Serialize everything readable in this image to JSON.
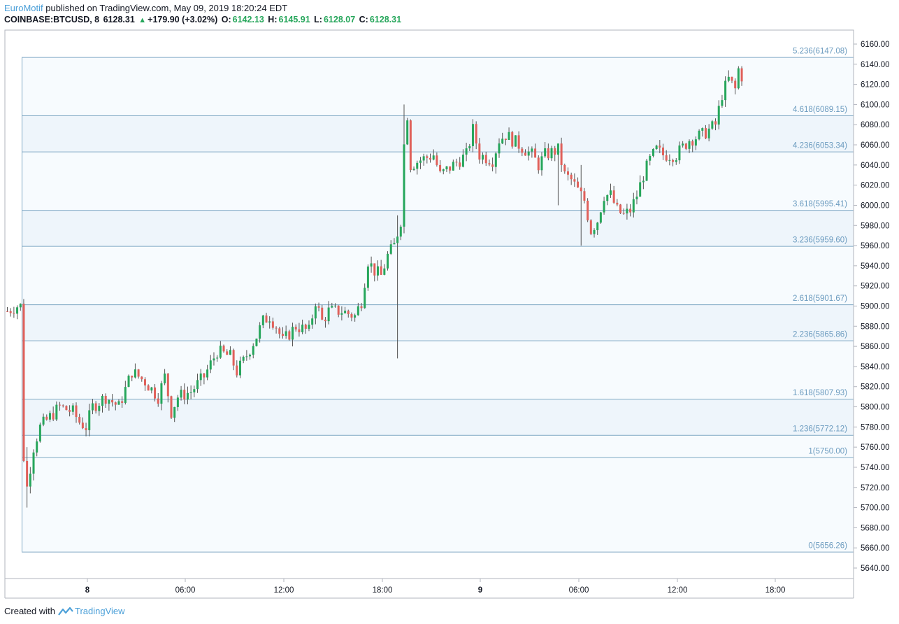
{
  "header": {
    "author": "EuroMotif",
    "published_text": "published on TradingView.com, May 09, 2019 18:20:24 EDT",
    "symbol": "COINBASE:BTCUSD, 8",
    "last": "6128.31",
    "change": "+179.90 (+3.02%)",
    "o_label": "O:",
    "o_value": "6142.13",
    "h_label": "H:",
    "h_value": "6145.91",
    "l_label": "L:",
    "l_value": "6128.07",
    "c_label": "C:",
    "c_value": "6128.31"
  },
  "footer": {
    "created_with": "Created with",
    "brand": "TradingView"
  },
  "colors": {
    "up": "#26a65b",
    "down": "#e0605a",
    "fib_line": "#7fa8c4",
    "fib_label": "#6b9bbf",
    "band": "#eef5fb"
  },
  "chart_data": {
    "type": "candlestick",
    "ylim": [
      5630,
      6170
    ],
    "y_ticks": [
      5640,
      5660,
      5680,
      5700,
      5720,
      5740,
      5760,
      5780,
      5800,
      5820,
      5840,
      5860,
      5880,
      5900,
      5920,
      5940,
      5960,
      5980,
      6000,
      6020,
      6040,
      6060,
      6080,
      6100,
      6120,
      6140,
      6160
    ],
    "y_tick_labels": [
      "5640.00",
      "5660.00",
      "5680.00",
      "5700.00",
      "5720.00",
      "5740.00",
      "5760.00",
      "5780.00",
      "5800.00",
      "5820.00",
      "5840.00",
      "5860.00",
      "5880.00",
      "5900.00",
      "5920.00",
      "5940.00",
      "5960.00",
      "5980.00",
      "6000.00",
      "6020.00",
      "6040.00",
      "6060.00",
      "6080.00",
      "6100.00",
      "6120.00",
      "6140.00",
      "6160.00"
    ],
    "x_tick_labels": [
      "8",
      "06:00",
      "12:00",
      "18:00",
      "9",
      "06:00",
      "12:00",
      "18:00"
    ],
    "fib_levels": [
      {
        "ratio": "0",
        "price": 5656.26,
        "label": "0(5656.26)"
      },
      {
        "ratio": "1",
        "price": 5750.0,
        "label": "1(5750.00)"
      },
      {
        "ratio": "1.236",
        "price": 5772.12,
        "label": "1.236(5772.12)"
      },
      {
        "ratio": "1.618",
        "price": 5807.93,
        "label": "1.618(5807.93)"
      },
      {
        "ratio": "2.236",
        "price": 5865.86,
        "label": "2.236(5865.86)"
      },
      {
        "ratio": "2.618",
        "price": 5901.67,
        "label": "2.618(5901.67)"
      },
      {
        "ratio": "3.236",
        "price": 5959.6,
        "label": "3.236(5959.60)"
      },
      {
        "ratio": "3.618",
        "price": 5995.41,
        "label": "3.618(5995.41)"
      },
      {
        "ratio": "4.236",
        "price": 6053.34,
        "label": "4.236(6053.34)"
      },
      {
        "ratio": "4.618",
        "price": 6089.15,
        "label": "4.618(6089.15)"
      },
      {
        "ratio": "5.236",
        "price": 6147.08,
        "label": "5.236(6147.08)"
      }
    ],
    "bands": [
      [
        5772.12,
        5807.93
      ],
      [
        5865.86,
        5901.67
      ],
      [
        5959.6,
        5995.41
      ],
      [
        6053.34,
        6089.15
      ]
    ],
    "price_path": [
      [
        0,
        5895
      ],
      [
        3,
        5900
      ],
      [
        4,
        5900
      ],
      [
        5,
        5750
      ],
      [
        6,
        5720
      ],
      [
        8,
        5760
      ],
      [
        10,
        5780
      ],
      [
        16,
        5800
      ],
      [
        20,
        5795
      ],
      [
        22,
        5785
      ],
      [
        24,
        5780
      ],
      [
        26,
        5800
      ],
      [
        30,
        5810
      ],
      [
        34,
        5800
      ],
      [
        38,
        5835
      ],
      [
        42,
        5825
      ],
      [
        46,
        5810
      ],
      [
        48,
        5830
      ],
      [
        50,
        5795
      ],
      [
        52,
        5810
      ],
      [
        56,
        5815
      ],
      [
        60,
        5830
      ],
      [
        64,
        5855
      ],
      [
        68,
        5850
      ],
      [
        70,
        5835
      ],
      [
        72,
        5845
      ],
      [
        76,
        5870
      ],
      [
        78,
        5885
      ],
      [
        80,
        5890
      ],
      [
        82,
        5880
      ],
      [
        84,
        5865
      ],
      [
        88,
        5880
      ],
      [
        92,
        5875
      ],
      [
        94,
        5905
      ],
      [
        96,
        5885
      ],
      [
        98,
        5895
      ],
      [
        102,
        5895
      ],
      [
        106,
        5890
      ],
      [
        108,
        5905
      ],
      [
        110,
        5945
      ],
      [
        112,
        5935
      ],
      [
        114,
        5930
      ],
      [
        116,
        5950
      ],
      [
        118,
        5960
      ],
      [
        120,
        5985
      ],
      [
        121,
        6060
      ],
      [
        122,
        6090
      ],
      [
        123,
        6040
      ],
      [
        126,
        6045
      ],
      [
        130,
        6050
      ],
      [
        132,
        6030
      ],
      [
        136,
        6040
      ],
      [
        140,
        6050
      ],
      [
        142,
        6075
      ],
      [
        144,
        6050
      ],
      [
        148,
        6045
      ],
      [
        150,
        6065
      ],
      [
        152,
        6070
      ],
      [
        156,
        6060
      ],
      [
        160,
        6050
      ],
      [
        162,
        6040
      ],
      [
        164,
        6050
      ],
      [
        168,
        6055
      ],
      [
        170,
        6030
      ],
      [
        172,
        6025
      ],
      [
        174,
        6015
      ],
      [
        176,
        6005
      ],
      [
        178,
        5975
      ],
      [
        180,
        5985
      ],
      [
        182,
        6010
      ],
      [
        184,
        6010
      ],
      [
        186,
        5995
      ],
      [
        188,
        5990
      ],
      [
        190,
        5995
      ],
      [
        192,
        6010
      ],
      [
        194,
        6030
      ],
      [
        196,
        6045
      ],
      [
        198,
        6055
      ],
      [
        200,
        6050
      ],
      [
        204,
        6050
      ],
      [
        208,
        6065
      ],
      [
        212,
        6070
      ],
      [
        216,
        6080
      ],
      [
        218,
        6110
      ],
      [
        220,
        6125
      ],
      [
        222,
        6115
      ],
      [
        223,
        6135
      ],
      [
        224,
        6128
      ]
    ]
  }
}
